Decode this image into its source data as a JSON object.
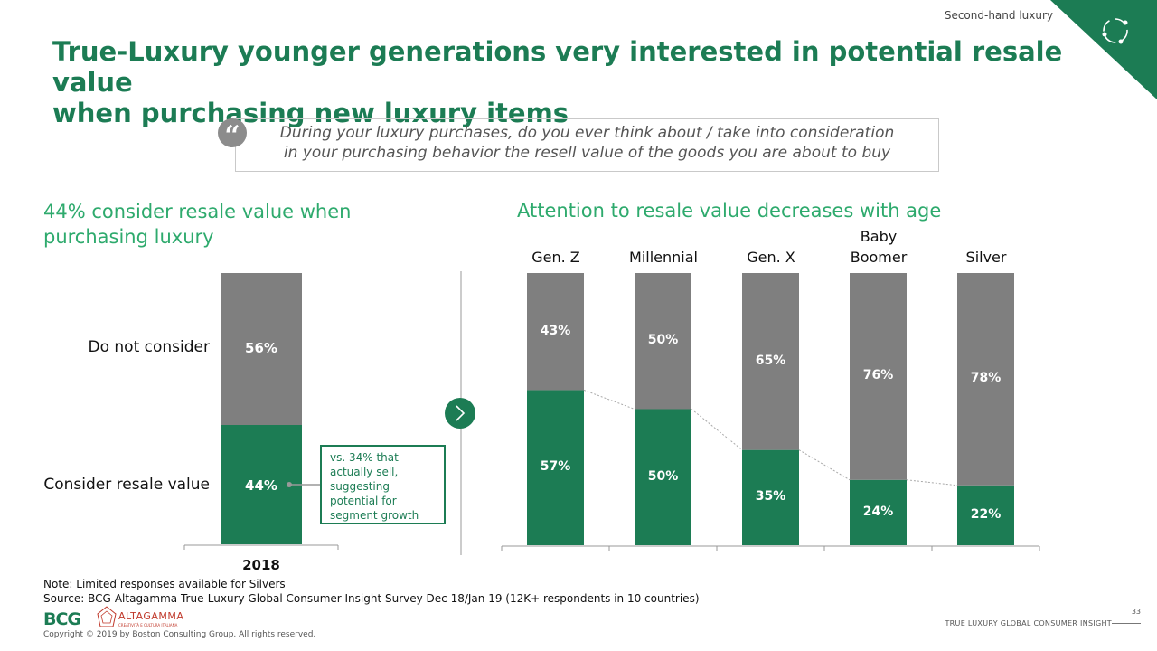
{
  "header": {
    "section_tag": "Second-hand luxury",
    "title_line1": "True-Luxury younger generations very interested in potential resale value",
    "title_line2": "when purchasing new luxury items"
  },
  "quote": {
    "mark": "“",
    "line1": "During your luxury purchases, do you ever think about / take into consideration",
    "line2": "in your purchasing behavior the resell value of the goods you are about to buy"
  },
  "left_panel": {
    "subtitle_line1": "44% consider resale value when",
    "subtitle_line2": "purchasing luxury",
    "callout_lines": [
      "vs. 34% that",
      "actually sell,",
      "suggesting",
      "potential for",
      "segment growth"
    ]
  },
  "right_panel": {
    "subtitle": "Attention to resale value decreases with age"
  },
  "colors": {
    "consider": "#1c7c54",
    "not_consider": "#7f7f7f",
    "accent": "#2eaa6d"
  },
  "chart_data": [
    {
      "type": "bar",
      "stacked": true,
      "categories": [
        "2018"
      ],
      "series": [
        {
          "name": "Consider resale value",
          "values": [
            44
          ],
          "labels": [
            "44%"
          ]
        },
        {
          "name": "Do not consider",
          "values": [
            56
          ],
          "labels": [
            "56%"
          ]
        }
      ],
      "ylim": [
        0,
        100
      ]
    },
    {
      "type": "bar",
      "stacked": true,
      "categories": [
        [
          "Gen. Z"
        ],
        [
          "Millennial"
        ],
        [
          "Gen. X"
        ],
        [
          "Baby",
          "Boomer"
        ],
        [
          "Silver"
        ]
      ],
      "series": [
        {
          "name": "",
          "values": [
            57,
            50,
            35,
            24,
            22
          ],
          "labels": [
            "57%",
            "50%",
            "35%",
            "24%",
            "22%"
          ]
        },
        {
          "name": "",
          "values": [
            43,
            50,
            65,
            76,
            78
          ],
          "labels": [
            "43%",
            "50%",
            "65%",
            "76%",
            "78%"
          ]
        }
      ],
      "ylim": [
        0,
        100
      ]
    }
  ],
  "footer": {
    "note": "Note: Limited responses available for Silvers",
    "source": "Source: BCG-Altagamma True-Luxury Global Consumer Insight Survey Dec 18/Jan 19 (12K+ respondents in 10 countries)",
    "copyright": "Copyright © 2019 by Boston Consulting Group. All rights reserved.",
    "bcg_logo": "BCG",
    "altagamma_logo": "ALTAGAMMA",
    "altagamma_sub": "CREATIVITÀ E CULTURA ITALIANA",
    "page_number": "33",
    "report_name": "TRUE LUXURY GLOBAL CONSUMER INSIGHT"
  }
}
